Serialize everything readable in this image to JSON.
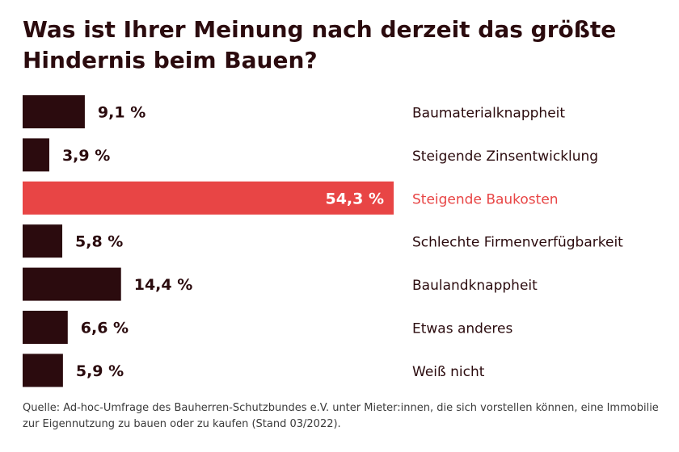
{
  "title": "Was ist Ihrer Meinung nach derzeit das größte Hindernis beim Bauen?",
  "source": "Quelle: Ad-hoc-Umfrage des Bauherren-Schutzbundes e.V. unter Mieter:innen, die sich vorstellen können, eine Immobilie zur Eigennutzung zu bauen oder zu kaufen (Stand 03/2022).",
  "colors": {
    "bar": "#2b0b0e",
    "highlight": "#e84545",
    "text": "#2b0b0e",
    "highlight_label": "#ffffff"
  },
  "chart_data": {
    "type": "bar",
    "orientation": "horizontal",
    "categories": [
      "Baumaterialknappheit",
      "Steigende Zinsentwicklung",
      "Steigende Baukosten",
      "Schlechte Firmenverfügbarkeit",
      "Baulandknappheit",
      "Etwas anderes",
      "Weiß nicht"
    ],
    "values": [
      9.1,
      3.9,
      54.3,
      5.8,
      14.4,
      6.6,
      5.9
    ],
    "value_labels": [
      "9,1 %",
      "3,9 %",
      "54,3 %",
      "5,8 %",
      "14,4 %",
      "6,6 %",
      "5,9 %"
    ],
    "highlight_index": 2,
    "title": "Was ist Ihrer Meinung nach derzeit das größte Hindernis beim Bauen?",
    "xlabel": "",
    "ylabel": "",
    "grid": false,
    "legend": "none"
  }
}
